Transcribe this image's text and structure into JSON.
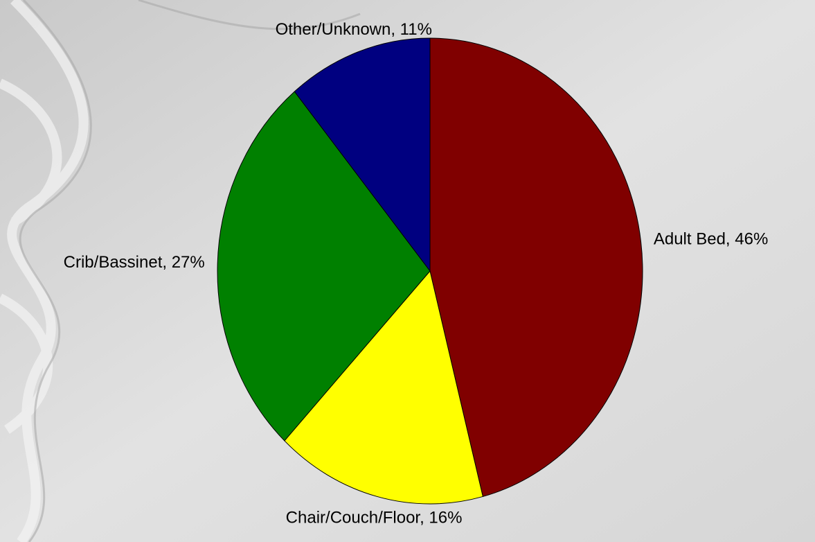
{
  "chart_data": {
    "type": "pie",
    "values": [
      46,
      16,
      27,
      11
    ],
    "value_labels": [
      "Adult Bed, 46%",
      "Chair/Couch/Floor, 16%",
      "Crib/Bassinet, 27%",
      "Other/Unknown, 11%"
    ],
    "colors": [
      "#800000",
      "#ffff00",
      "#008000",
      "#000080"
    ]
  }
}
